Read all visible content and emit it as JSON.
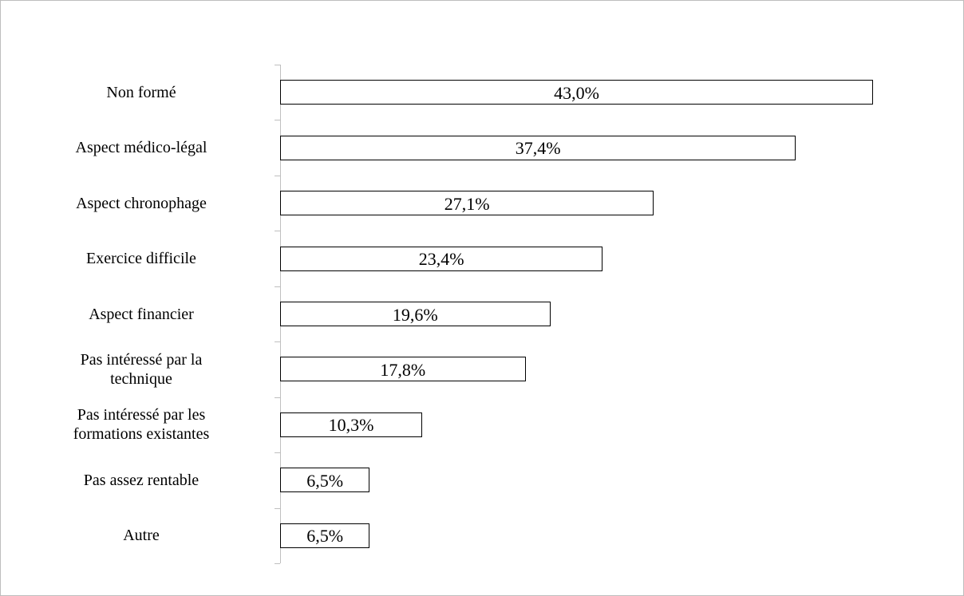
{
  "chart_data": {
    "type": "bar",
    "orientation": "horizontal",
    "categories": [
      "Non formé",
      "Aspect médico-légal",
      "Aspect chronophage",
      "Exercice difficile",
      "Aspect financier",
      "Pas intéressé par la\ntechnique",
      "Pas intéressé par les\nformations existantes",
      "Pas assez rentable",
      "Autre"
    ],
    "values": [
      43.0,
      37.4,
      27.1,
      23.4,
      19.6,
      17.8,
      10.3,
      6.5,
      6.5
    ],
    "value_labels": [
      "43,0%",
      "37,4%",
      "27,1%",
      "23,4%",
      "19,6%",
      "17,8%",
      "10,3%",
      "6,5%",
      "6,5%"
    ],
    "color": "#ffffff",
    "xlim": [
      0,
      45
    ]
  }
}
